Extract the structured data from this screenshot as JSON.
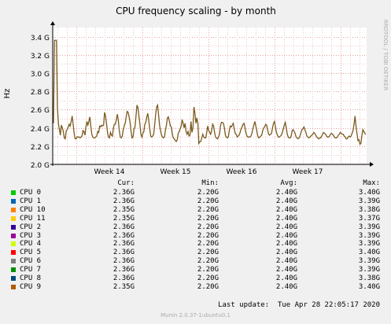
{
  "chart_data": {
    "type": "line",
    "title": "CPU frequency scaling - by month",
    "ylabel": "Hz",
    "watermark": "RRDTOOL / TOBI OETIKER",
    "ylim": [
      2.0,
      3.5
    ],
    "y_ticks": [
      {
        "value": 2.0,
        "label": "2.0 G"
      },
      {
        "value": 2.2,
        "label": "2.2 G"
      },
      {
        "value": 2.4,
        "label": "2.4 G"
      },
      {
        "value": 2.6,
        "label": "2.6 G"
      },
      {
        "value": 2.8,
        "label": "2.8 G"
      },
      {
        "value": 3.0,
        "label": "3.0 G"
      },
      {
        "value": 3.2,
        "label": "3.2 G"
      },
      {
        "value": 3.4,
        "label": "3.4 G"
      }
    ],
    "x_labels": [
      "Week 14",
      "Week 15",
      "Week 16",
      "Week 17"
    ],
    "grid": true,
    "line_color": "#7a5a1e",
    "series_y": [
      2.45,
      3.36,
      3.36,
      3.36,
      2.62,
      2.45,
      2.38,
      2.32,
      2.43,
      2.4,
      2.36,
      2.29,
      2.28,
      2.37,
      2.38,
      2.41,
      2.44,
      2.42,
      2.47,
      2.53,
      2.44,
      2.34,
      2.28,
      2.28,
      2.3,
      2.3,
      2.3,
      2.29,
      2.3,
      2.31,
      2.37,
      2.36,
      2.32,
      2.41,
      2.47,
      2.43,
      2.47,
      2.52,
      2.42,
      2.33,
      2.3,
      2.29,
      2.29,
      2.3,
      2.31,
      2.36,
      2.35,
      2.42,
      2.41,
      2.43,
      2.42,
      2.43,
      2.57,
      2.53,
      2.45,
      2.35,
      2.3,
      2.29,
      2.35,
      2.32,
      2.31,
      2.4,
      2.44,
      2.44,
      2.49,
      2.55,
      2.48,
      2.37,
      2.3,
      2.29,
      2.31,
      2.38,
      2.42,
      2.45,
      2.52,
      2.58,
      2.57,
      2.52,
      2.46,
      2.36,
      2.29,
      2.3,
      2.39,
      2.41,
      2.53,
      2.65,
      2.62,
      2.53,
      2.44,
      2.33,
      2.3,
      2.34,
      2.36,
      2.44,
      2.46,
      2.52,
      2.56,
      2.48,
      2.39,
      2.31,
      2.3,
      2.31,
      2.33,
      2.43,
      2.55,
      2.63,
      2.65,
      2.54,
      2.43,
      2.37,
      2.32,
      2.3,
      2.29,
      2.3,
      2.38,
      2.43,
      2.51,
      2.52,
      2.47,
      2.42,
      2.41,
      2.33,
      2.29,
      2.28,
      2.26,
      2.25,
      2.27,
      2.34,
      2.36,
      2.39,
      2.42,
      2.49,
      2.45,
      2.4,
      2.45,
      2.36,
      2.33,
      2.36,
      2.31,
      2.32,
      2.47,
      2.35,
      2.4,
      2.63,
      2.56,
      2.45,
      2.51,
      2.45,
      2.23,
      2.25,
      2.25,
      2.29,
      2.33,
      2.3,
      2.29,
      2.29,
      2.35,
      2.42,
      2.37,
      2.35,
      2.33,
      2.37,
      2.44,
      2.42,
      2.35,
      2.3,
      2.29,
      2.28,
      2.3,
      2.33,
      2.42,
      2.46,
      2.46,
      2.45,
      2.4,
      2.32,
      2.3,
      2.29,
      2.3,
      2.37,
      2.42,
      2.41,
      2.43,
      2.45,
      2.39,
      2.34,
      2.33,
      2.3,
      2.31,
      2.32,
      2.35,
      2.39,
      2.41,
      2.44,
      2.45,
      2.4,
      2.34,
      2.31,
      2.3,
      2.3,
      2.3,
      2.31,
      2.34,
      2.39,
      2.43,
      2.47,
      2.42,
      2.37,
      2.31,
      2.29,
      2.3,
      2.31,
      2.32,
      2.37,
      2.4,
      2.41,
      2.44,
      2.43,
      2.38,
      2.33,
      2.32,
      2.33,
      2.34,
      2.4,
      2.45,
      2.47,
      2.41,
      2.35,
      2.32,
      2.3,
      2.3,
      2.31,
      2.32,
      2.35,
      2.39,
      2.43,
      2.46,
      2.4,
      2.33,
      2.3,
      2.29,
      2.29,
      2.31,
      2.37,
      2.38,
      2.36,
      2.34,
      2.3,
      2.29,
      2.28,
      2.29,
      2.31,
      2.35,
      2.38,
      2.39,
      2.41,
      2.38,
      2.35,
      2.31,
      2.3,
      2.29,
      2.3,
      2.31,
      2.32,
      2.33,
      2.35,
      2.34,
      2.32,
      2.3,
      2.29,
      2.28,
      2.29,
      2.29,
      2.31,
      2.33,
      2.35,
      2.34,
      2.33,
      2.31,
      2.3,
      2.3,
      2.31,
      2.33,
      2.34,
      2.33,
      2.32,
      2.3,
      2.29,
      2.29,
      2.3,
      2.32,
      2.33,
      2.35,
      2.34,
      2.33,
      2.33,
      2.31,
      2.3,
      2.28,
      2.28,
      2.3,
      2.31,
      2.3,
      2.31,
      2.34,
      2.37,
      2.44,
      2.53,
      2.42,
      2.34,
      2.26,
      2.27,
      2.22,
      2.23,
      2.32,
      2.38,
      2.36,
      2.34,
      2.33
    ]
  },
  "legend": {
    "headers": {
      "cur": "Cur:",
      "min": "Min:",
      "avg": "Avg:",
      "max": "Max:"
    },
    "rows": [
      {
        "name": "CPU 0",
        "color": "#00cc00",
        "cur": "2.36G",
        "min": "2.20G",
        "avg": "2.40G",
        "max": "3.40G"
      },
      {
        "name": "CPU 1",
        "color": "#0066b3",
        "cur": "2.36G",
        "min": "2.20G",
        "avg": "2.40G",
        "max": "3.39G"
      },
      {
        "name": "CPU 10",
        "color": "#ff8000",
        "cur": "2.35G",
        "min": "2.20G",
        "avg": "2.40G",
        "max": "3.38G"
      },
      {
        "name": "CPU 11",
        "color": "#ffcc00",
        "cur": "2.35G",
        "min": "2.20G",
        "avg": "2.40G",
        "max": "3.37G"
      },
      {
        "name": "CPU 2",
        "color": "#330099",
        "cur": "2.36G",
        "min": "2.20G",
        "avg": "2.40G",
        "max": "3.39G"
      },
      {
        "name": "CPU 3",
        "color": "#990099",
        "cur": "2.36G",
        "min": "2.20G",
        "avg": "2.40G",
        "max": "3.39G"
      },
      {
        "name": "CPU 4",
        "color": "#ccff00",
        "cur": "2.36G",
        "min": "2.20G",
        "avg": "2.40G",
        "max": "3.39G"
      },
      {
        "name": "CPU 5",
        "color": "#ff0000",
        "cur": "2.36G",
        "min": "2.20G",
        "avg": "2.40G",
        "max": "3.40G"
      },
      {
        "name": "CPU 6",
        "color": "#808080",
        "cur": "2.36G",
        "min": "2.20G",
        "avg": "2.40G",
        "max": "3.39G"
      },
      {
        "name": "CPU 7",
        "color": "#008f00",
        "cur": "2.36G",
        "min": "2.20G",
        "avg": "2.40G",
        "max": "3.39G"
      },
      {
        "name": "CPU 8",
        "color": "#00487d",
        "cur": "2.36G",
        "min": "2.20G",
        "avg": "2.40G",
        "max": "3.38G"
      },
      {
        "name": "CPU 9",
        "color": "#b35a00",
        "cur": "2.35G",
        "min": "2.20G",
        "avg": "2.40G",
        "max": "3.40G"
      }
    ]
  },
  "last_update": "Last update:  Tue Apr 28 22:05:17 2020",
  "footer": "Munin 2.0.37-1ubuntu0.1"
}
